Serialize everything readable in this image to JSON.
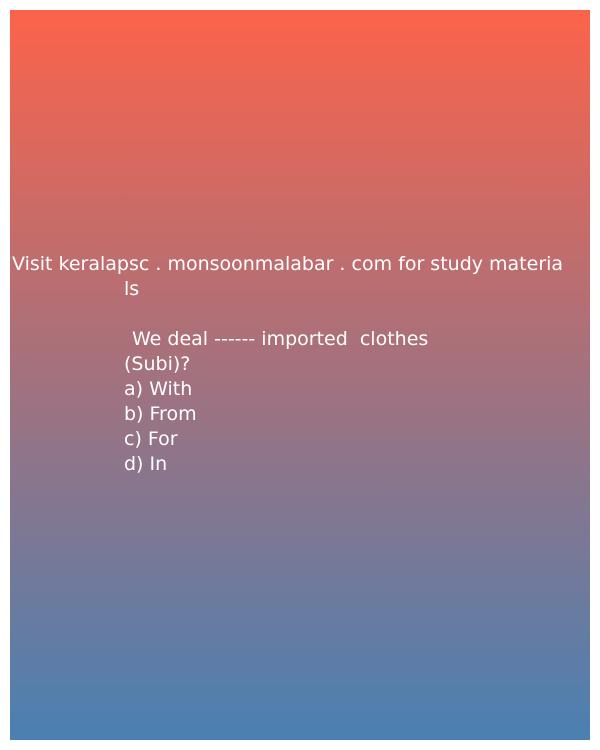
{
  "banner": "Visit keralapsc . monsoonmalabar . com for study materia",
  "banner_wrap": "ls",
  "question": "We deal ------ imported  clothes",
  "subject": "(Subi)?",
  "options": [
    "a) With",
    "b) From",
    "c) For",
    "d) In"
  ]
}
